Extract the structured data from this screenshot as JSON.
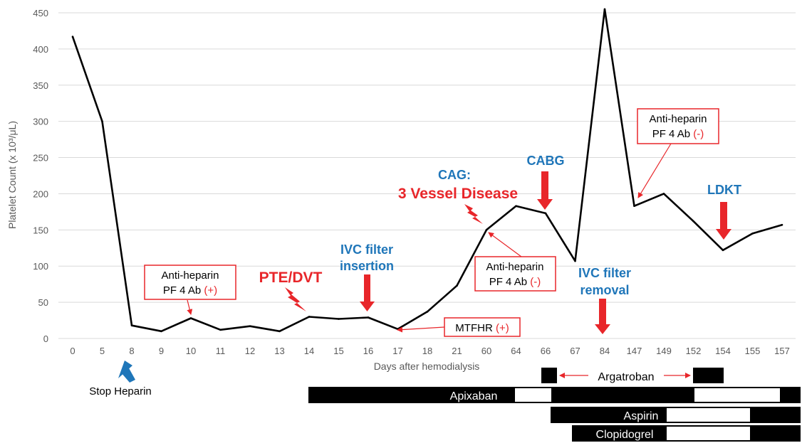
{
  "chart_data": {
    "type": "line",
    "xlabel": "Days after hemodialysis",
    "ylabel": "Platelet Count (x 10³/μL)",
    "ylim": [
      0,
      450
    ],
    "yticks": [
      "0",
      "50",
      "100",
      "150",
      "200",
      "250",
      "300",
      "350",
      "400",
      "450"
    ],
    "grid": true,
    "categories": [
      "0",
      "5",
      "8",
      "9",
      "10",
      "11",
      "12",
      "13",
      "14",
      "15",
      "16",
      "17",
      "18",
      "21",
      "60",
      "64",
      "66",
      "67",
      "84",
      "147",
      "149",
      "152",
      "154",
      "155",
      "157"
    ],
    "series": [
      {
        "values": [
          417,
          300,
          18,
          10,
          28,
          12,
          17,
          10,
          30,
          27,
          29,
          13,
          37,
          73,
          150,
          183,
          173,
          107,
          455,
          183,
          200,
          162,
          122,
          145,
          157
        ]
      }
    ],
    "line_color": "#000000"
  },
  "annotations": {
    "anti1": {
      "line1": "Anti-heparin",
      "line2": "PF 4 Ab ",
      "sign": "(+)"
    },
    "pte": "PTE/DVT",
    "ivc_insert": {
      "line1": "IVC filter",
      "line2": "insertion"
    },
    "mtfhr": {
      "text": "MTFHR ",
      "sign": "(+)"
    },
    "cag": {
      "line1": "CAG:",
      "line2": "3 Vessel Disease"
    },
    "anti2": {
      "line1": "Anti-heparin",
      "line2": "PF 4 Ab ",
      "sign": "(-)"
    },
    "cabg": "CABG",
    "ivc_remove": {
      "line1": "IVC filter",
      "line2": "removal"
    },
    "anti3": {
      "line1": "Anti-heparin",
      "line2": "PF 4 Ab ",
      "sign": "(-)"
    },
    "ldkt": "LDKT",
    "stop_heparin": "Stop Heparin"
  },
  "medications": {
    "argatroban": "Argatroban",
    "apixaban": "Apixaban",
    "aspirin": "Aspirin",
    "clopidogrel": "Clopidogrel"
  },
  "colors": {
    "red": "#e8262a",
    "blue": "#1f76b9",
    "grid": "#d9d9d9",
    "axis_text": "#595959"
  }
}
